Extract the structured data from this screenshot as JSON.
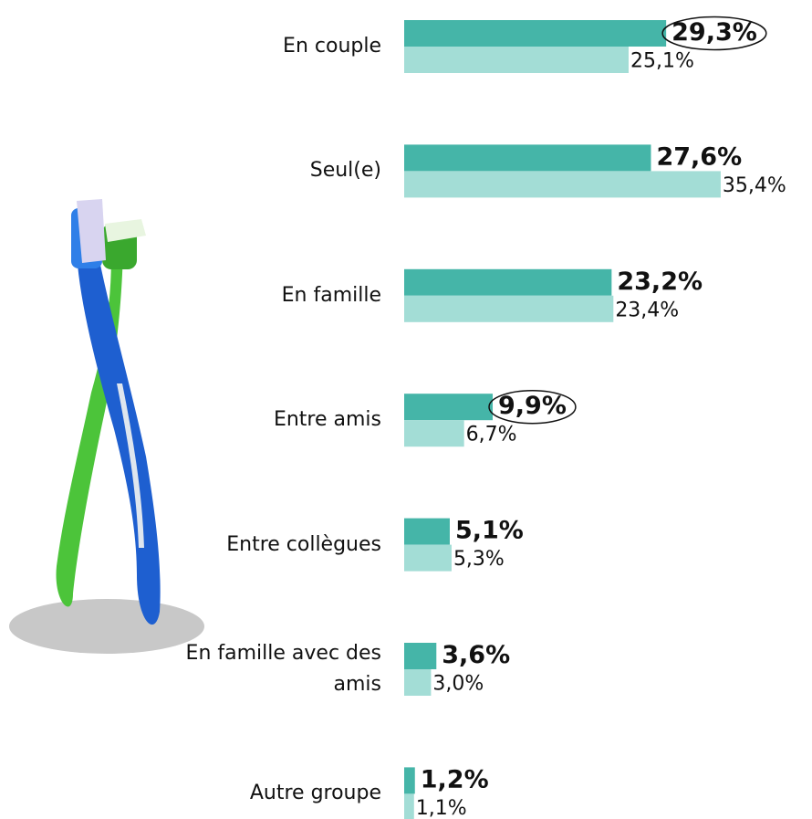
{
  "chart_data": {
    "type": "bar",
    "orientation": "horizontal",
    "categories": [
      "En couple",
      "Seul(e)",
      "En famille",
      "Entre amis",
      "Entre collègues",
      "En famille avec des amis",
      "Autre groupe"
    ],
    "series": [
      {
        "color": "#45b5a8",
        "values": [
          29.3,
          27.6,
          23.2,
          9.9,
          5.1,
          3.6,
          1.2
        ],
        "value_labels": [
          "29,3%",
          "27,6%",
          "23,2%",
          "9,9%",
          "5,1%",
          "3,6%",
          "1,2%"
        ]
      },
      {
        "color": "#a3ddd6",
        "values": [
          25.1,
          35.4,
          23.4,
          6.7,
          5.3,
          3.0,
          1.1
        ],
        "value_labels": [
          "25,1%",
          "35,4%",
          "23,4%",
          "6,7%",
          "5,3%",
          "3,0%",
          "1,1%"
        ]
      }
    ],
    "circled": [
      0,
      3
    ]
  }
}
